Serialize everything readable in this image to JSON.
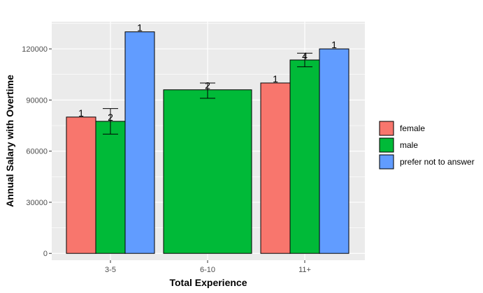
{
  "chart_data": {
    "type": "bar",
    "xlabel": "Total Experience",
    "ylabel": "Annual Salary with Overtime",
    "categories": [
      "3-5",
      "6-10",
      "11+"
    ],
    "ylim": [
      -4000,
      136000
    ],
    "yticks": [
      0,
      30000,
      60000,
      90000,
      120000
    ],
    "grid": true,
    "legend_position": "right",
    "series": [
      {
        "name": "female",
        "color": "#F8766D"
      },
      {
        "name": "male",
        "color": "#00BA38"
      },
      {
        "name": "prefer not to answer",
        "color": "#619CFF"
      }
    ],
    "bars": [
      {
        "category": "3-5",
        "series": "female",
        "value": 80000,
        "count_label": "1"
      },
      {
        "category": "3-5",
        "series": "male",
        "value": 77500,
        "count_label": "2",
        "error": [
          70000,
          85000
        ]
      },
      {
        "category": "3-5",
        "series": "prefer not to answer",
        "value": 130000,
        "count_label": "1"
      },
      {
        "category": "6-10",
        "series": "male",
        "value": 96000,
        "count_label": "2",
        "error": [
          91000,
          100000
        ]
      },
      {
        "category": "11+",
        "series": "female",
        "value": 100000,
        "count_label": "1"
      },
      {
        "category": "11+",
        "series": "male",
        "value": 113500,
        "count_label": "4",
        "error": [
          109500,
          117500
        ]
      },
      {
        "category": "11+",
        "series": "prefer not to answer",
        "value": 120000,
        "count_label": "1"
      }
    ]
  }
}
